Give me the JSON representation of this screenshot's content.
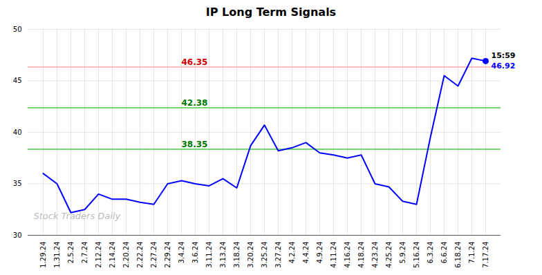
{
  "chart_data": {
    "type": "line",
    "title": "IP Long Term Signals",
    "categories": [
      "1.29.24",
      "1.31.24",
      "2.5.24",
      "2.7.24",
      "2.12.24",
      "2.14.24",
      "2.20.24",
      "2.22.24",
      "2.27.24",
      "2.29.24",
      "3.4.24",
      "3.6.24",
      "3.11.24",
      "3.13.24",
      "3.18.24",
      "3.20.24",
      "3.25.24",
      "3.27.24",
      "4.2.24",
      "4.4.24",
      "4.9.24",
      "4.11.24",
      "4.16.24",
      "4.18.24",
      "4.23.24",
      "4.25.24",
      "5.9.24",
      "5.16.24",
      "6.3.24",
      "6.6.24",
      "6.18.24",
      "7.1.24",
      "7.17.24"
    ],
    "values": [
      36.0,
      35.0,
      32.2,
      32.5,
      34.0,
      33.5,
      33.5,
      33.2,
      33.0,
      35.0,
      35.3,
      35.0,
      34.8,
      35.5,
      34.6,
      38.7,
      40.7,
      38.2,
      38.5,
      39.0,
      38.0,
      37.8,
      37.5,
      37.8,
      35.0,
      34.7,
      33.3,
      33.0,
      39.5,
      45.5,
      44.5,
      47.2,
      46.92
    ],
    "color": "#0000ff",
    "ylim": [
      30,
      50
    ],
    "yticks": [
      30,
      35,
      40,
      45,
      50
    ],
    "grid": true,
    "reference_lines": [
      {
        "value": 46.35,
        "label": "46.35",
        "color": "#ffaaaa",
        "label_color": "#cc0000"
      },
      {
        "value": 42.38,
        "label": "42.38",
        "color": "#44cc44",
        "label_color": "#007700"
      },
      {
        "value": 38.35,
        "label": "38.35",
        "color": "#44cc44",
        "label_color": "#007700"
      }
    ],
    "last_point": {
      "marker": "circle",
      "time_label": "15:59",
      "time_color": "#000000",
      "value_label": "46.92"
    },
    "watermark": {
      "text": "Stock Traders Daily",
      "color": "#bbbbbb"
    }
  }
}
